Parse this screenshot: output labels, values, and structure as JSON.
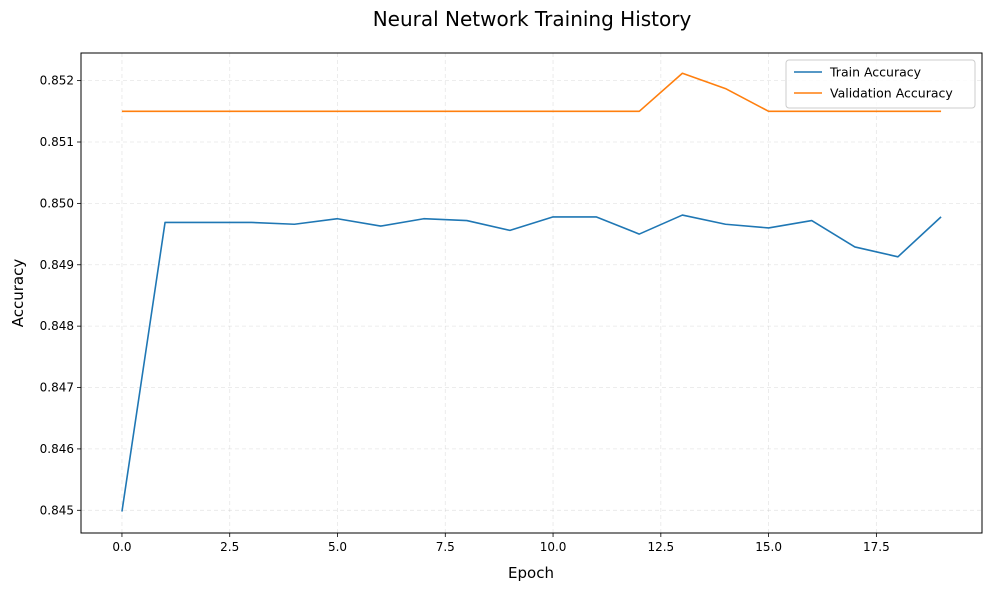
{
  "chart_data": {
    "type": "line",
    "title": "Neural Network Training History",
    "xlabel": "Epoch",
    "ylabel": "Accuracy",
    "xlim": [
      -0.95,
      19.95
    ],
    "ylim": [
      0.84463,
      0.85245
    ],
    "xticks": [
      0.0,
      2.5,
      5.0,
      7.5,
      10.0,
      12.5,
      15.0,
      17.5
    ],
    "xtick_labels": [
      "0.0",
      "2.5",
      "5.0",
      "7.5",
      "10.0",
      "12.5",
      "15.0",
      "17.5"
    ],
    "yticks": [
      0.845,
      0.846,
      0.847,
      0.848,
      0.849,
      0.85,
      0.851,
      0.852
    ],
    "ytick_labels": [
      "0.845",
      "0.846",
      "0.847",
      "0.848",
      "0.849",
      "0.850",
      "0.851",
      "0.852"
    ],
    "grid": true,
    "legend_position": "top-right",
    "x": [
      0,
      1,
      2,
      3,
      4,
      5,
      6,
      7,
      8,
      9,
      10,
      11,
      12,
      13,
      14,
      15,
      16,
      17,
      18,
      19
    ],
    "series": [
      {
        "name": "Train Accuracy",
        "color": "#1f77b4",
        "values": [
          0.84498,
          0.84969,
          0.84969,
          0.84969,
          0.84966,
          0.84975,
          0.84963,
          0.84975,
          0.84972,
          0.84956,
          0.84978,
          0.84978,
          0.8495,
          0.84981,
          0.84966,
          0.8496,
          0.84972,
          0.84929,
          0.84913,
          0.84978
        ]
      },
      {
        "name": "Validation Accuracy",
        "color": "#ff7f0e",
        "values": [
          0.8515,
          0.8515,
          0.8515,
          0.8515,
          0.8515,
          0.8515,
          0.8515,
          0.8515,
          0.8515,
          0.8515,
          0.8515,
          0.8515,
          0.8515,
          0.85212,
          0.85187,
          0.8515,
          0.8515,
          0.8515,
          0.8515,
          0.8515
        ]
      }
    ]
  }
}
